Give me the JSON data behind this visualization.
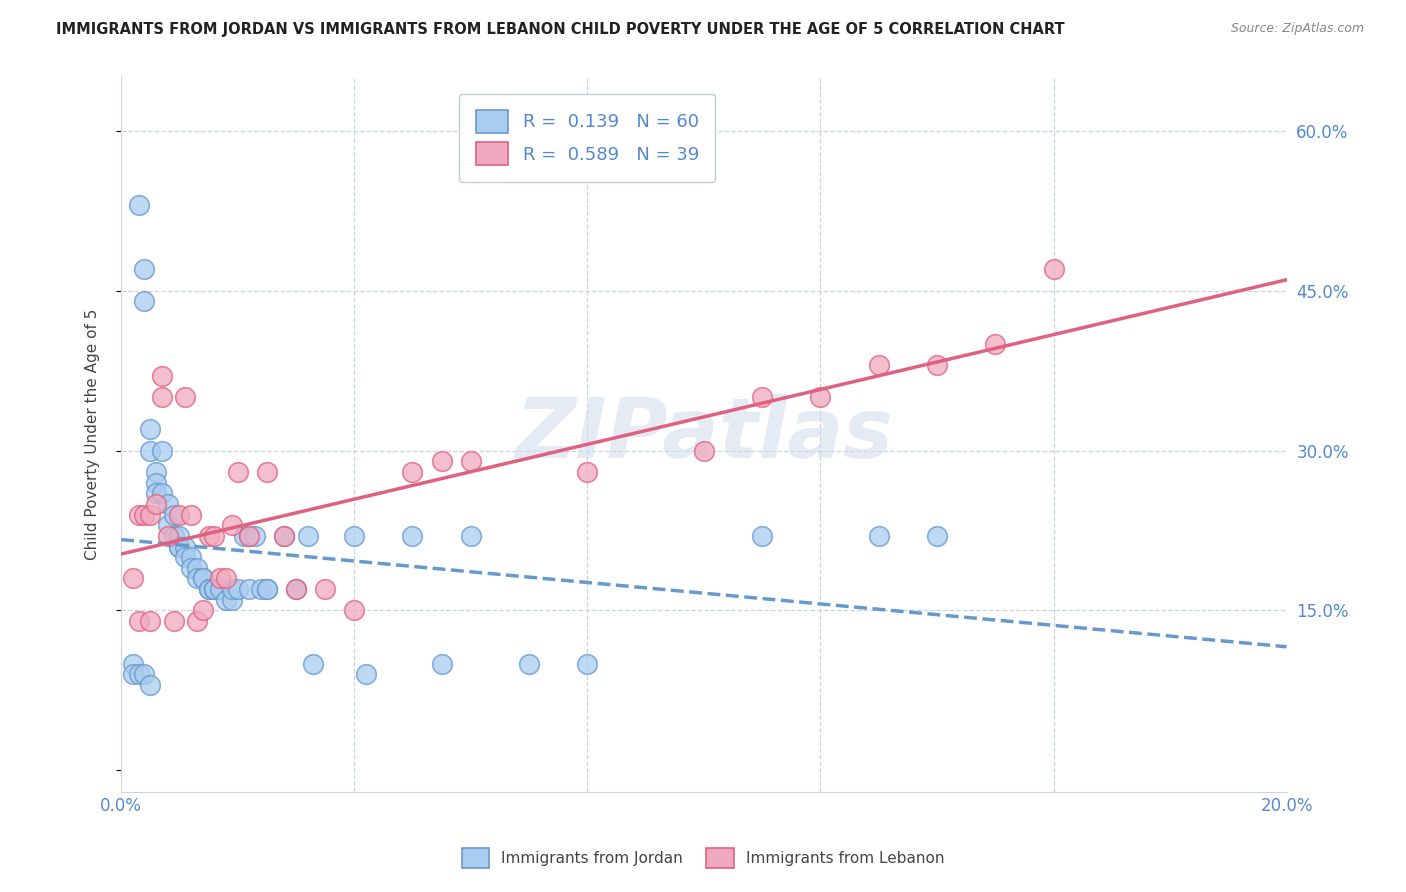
{
  "title": "IMMIGRANTS FROM JORDAN VS IMMIGRANTS FROM LEBANON CHILD POVERTY UNDER THE AGE OF 5 CORRELATION CHART",
  "source": "Source: ZipAtlas.com",
  "ylabel": "Child Poverty Under the Age of 5",
  "xlim": [
    0.0,
    0.2
  ],
  "ylim": [
    -0.02,
    0.65
  ],
  "jordan_R": 0.139,
  "jordan_N": 60,
  "lebanon_R": 0.589,
  "lebanon_N": 39,
  "jordan_color": "#aaccf0",
  "lebanon_color": "#f0aac0",
  "jordan_line_color": "#6699cc",
  "lebanon_line_color": "#e06080",
  "watermark_text": "ZIPatlas",
  "background_color": "#ffffff",
  "grid_color": "#c8d4e4",
  "title_color": "#222222",
  "axis_label_color": "#5588cc",
  "legend_label_jordan": "Immigrants from Jordan",
  "legend_label_lebanon": "Immigrants from Lebanon",
  "jordan_x": [
    0.003,
    0.004,
    0.004,
    0.005,
    0.005,
    0.006,
    0.006,
    0.006,
    0.007,
    0.007,
    0.008,
    0.008,
    0.009,
    0.009,
    0.01,
    0.01,
    0.01,
    0.011,
    0.011,
    0.012,
    0.012,
    0.013,
    0.013,
    0.014,
    0.014,
    0.015,
    0.015,
    0.016,
    0.016,
    0.017,
    0.018,
    0.019,
    0.019,
    0.02,
    0.021,
    0.022,
    0.022,
    0.023,
    0.024,
    0.025,
    0.025,
    0.028,
    0.03,
    0.032,
    0.033,
    0.04,
    0.042,
    0.05,
    0.055,
    0.06,
    0.07,
    0.08,
    0.11,
    0.13,
    0.14,
    0.002,
    0.002,
    0.003,
    0.004,
    0.005
  ],
  "jordan_y": [
    0.53,
    0.47,
    0.44,
    0.32,
    0.3,
    0.28,
    0.27,
    0.26,
    0.26,
    0.3,
    0.25,
    0.23,
    0.24,
    0.22,
    0.22,
    0.21,
    0.21,
    0.21,
    0.2,
    0.2,
    0.19,
    0.19,
    0.18,
    0.18,
    0.18,
    0.17,
    0.17,
    0.17,
    0.17,
    0.17,
    0.16,
    0.16,
    0.17,
    0.17,
    0.22,
    0.22,
    0.17,
    0.22,
    0.17,
    0.17,
    0.17,
    0.22,
    0.17,
    0.22,
    0.1,
    0.22,
    0.09,
    0.22,
    0.1,
    0.22,
    0.1,
    0.1,
    0.22,
    0.22,
    0.22,
    0.1,
    0.09,
    0.09,
    0.09,
    0.08
  ],
  "lebanon_x": [
    0.002,
    0.003,
    0.003,
    0.004,
    0.005,
    0.005,
    0.006,
    0.007,
    0.007,
    0.008,
    0.009,
    0.01,
    0.011,
    0.012,
    0.013,
    0.014,
    0.015,
    0.016,
    0.017,
    0.018,
    0.019,
    0.02,
    0.022,
    0.025,
    0.028,
    0.03,
    0.035,
    0.04,
    0.05,
    0.055,
    0.06,
    0.08,
    0.1,
    0.11,
    0.12,
    0.13,
    0.14,
    0.15,
    0.16
  ],
  "lebanon_y": [
    0.18,
    0.24,
    0.14,
    0.24,
    0.24,
    0.14,
    0.25,
    0.37,
    0.35,
    0.22,
    0.14,
    0.24,
    0.35,
    0.24,
    0.14,
    0.15,
    0.22,
    0.22,
    0.18,
    0.18,
    0.23,
    0.28,
    0.22,
    0.28,
    0.22,
    0.17,
    0.17,
    0.15,
    0.28,
    0.29,
    0.29,
    0.28,
    0.3,
    0.35,
    0.35,
    0.38,
    0.38,
    0.4,
    0.47
  ]
}
